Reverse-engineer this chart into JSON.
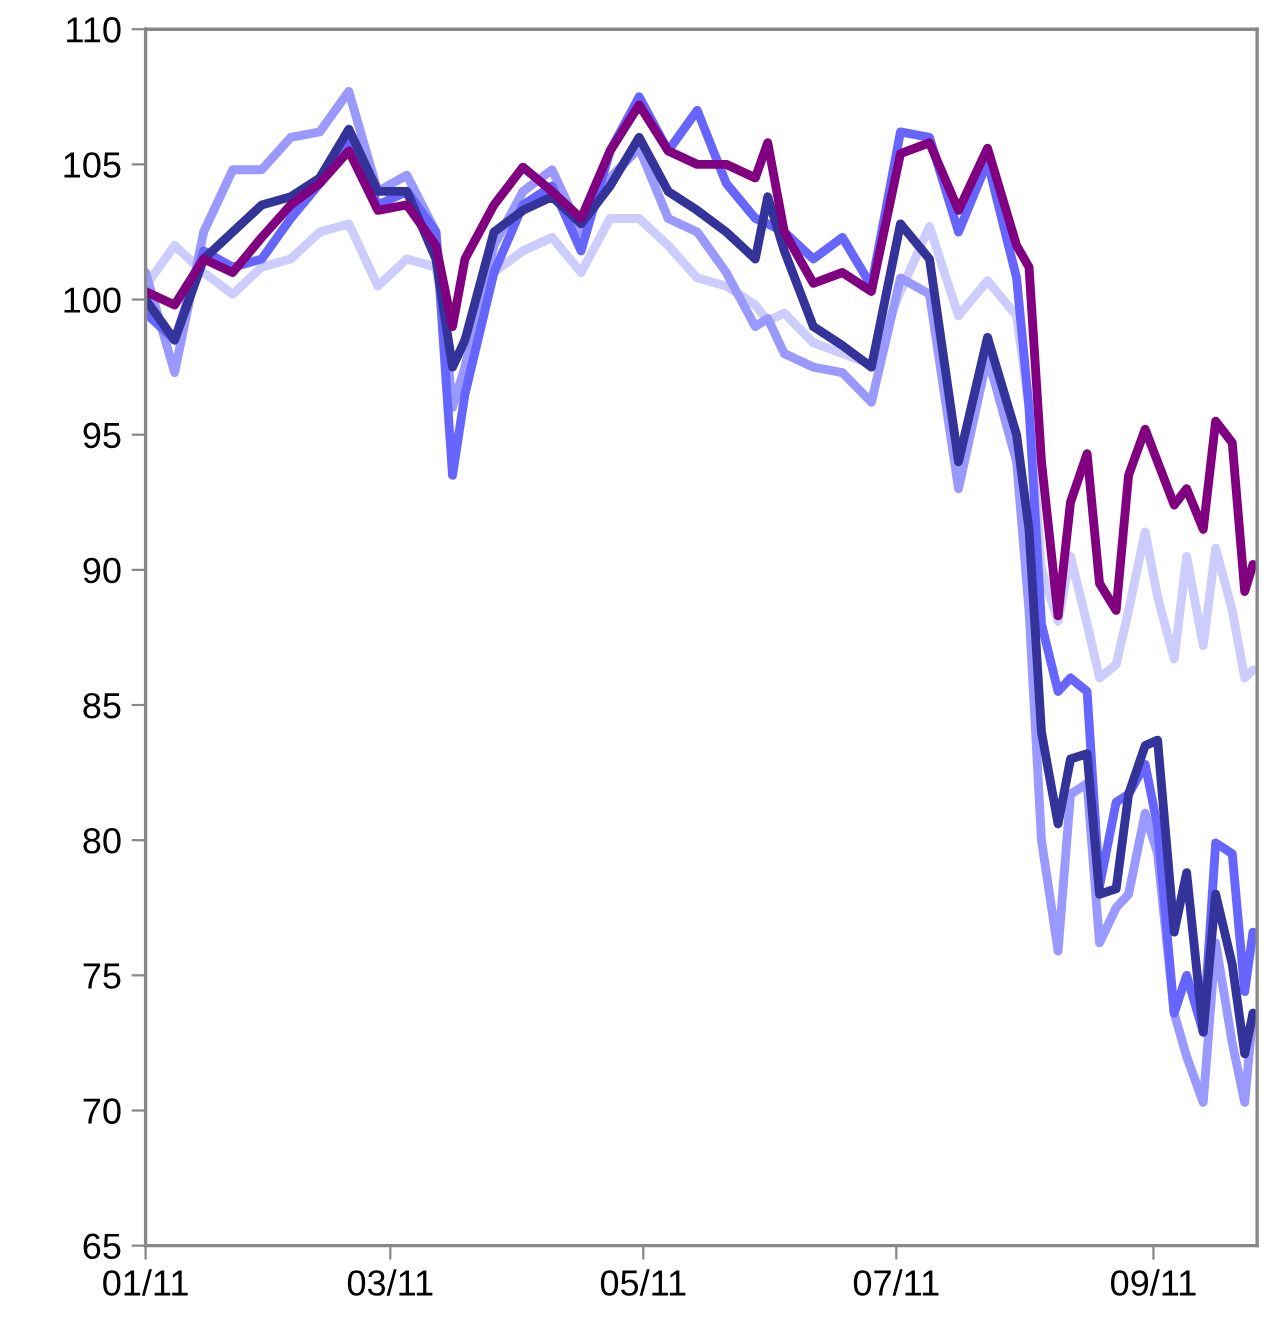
{
  "chart_data": {
    "type": "line",
    "x": [
      "2011-01-01",
      "2011-01-08",
      "2011-01-15",
      "2011-01-22",
      "2011-01-29",
      "2011-02-05",
      "2011-02-12",
      "2011-02-19",
      "2011-02-26",
      "2011-03-05",
      "2011-03-12",
      "2011-03-16",
      "2011-03-19",
      "2011-03-26",
      "2011-04-02",
      "2011-04-09",
      "2011-04-16",
      "2011-04-23",
      "2011-04-30",
      "2011-05-07",
      "2011-05-14",
      "2011-05-21",
      "2011-05-28",
      "2011-05-31",
      "2011-06-04",
      "2011-06-11",
      "2011-06-18",
      "2011-06-25",
      "2011-07-02",
      "2011-07-09",
      "2011-07-16",
      "2011-07-23",
      "2011-07-30",
      "2011-08-02",
      "2011-08-05",
      "2011-08-09",
      "2011-08-12",
      "2011-08-16",
      "2011-08-19",
      "2011-08-23",
      "2011-08-26",
      "2011-08-30",
      "2011-09-02",
      "2011-09-06",
      "2011-09-09",
      "2011-09-13",
      "2011-09-16",
      "2011-09-20",
      "2011-09-23",
      "2011-09-25"
    ],
    "series": [
      {
        "color": "#ccccff",
        "values": [
          100.5,
          102,
          101,
          100.2,
          101.2,
          101.5,
          102.5,
          102.8,
          100.5,
          101.5,
          101.2,
          97.5,
          98.5,
          101,
          101.8,
          102.3,
          101,
          103,
          103,
          102,
          100.8,
          100.5,
          99.8,
          99.2,
          99.5,
          98.4,
          98,
          97.6,
          100.3,
          102.7,
          99.4,
          100.7,
          99.4,
          96,
          90,
          88.1,
          90.5,
          88,
          86,
          86.5,
          88.5,
          91.4,
          89,
          86.7,
          90.5,
          87.2,
          90.8,
          88.5,
          86,
          86.3
        ]
      },
      {
        "color": "#9999ff",
        "values": [
          101,
          97.3,
          102.5,
          104.8,
          104.8,
          106,
          106.2,
          107.7,
          104,
          104.6,
          102.5,
          96,
          97.5,
          102,
          104,
          104.8,
          102.5,
          104.5,
          105.6,
          103,
          102.5,
          101,
          99,
          99.3,
          98,
          97.5,
          97.3,
          96.2,
          100.8,
          100.2,
          93,
          97.9,
          94,
          88.5,
          80,
          75.9,
          81.7,
          82.1,
          76.2,
          77.5,
          78,
          81,
          79.5,
          73.6,
          72,
          70.3,
          76.2,
          72.5,
          70.3,
          73.6
        ]
      },
      {
        "color": "#6666ff",
        "values": [
          99.5,
          98.5,
          101.8,
          101.2,
          101.5,
          103,
          104.3,
          105.8,
          103.5,
          104,
          102.5,
          93.5,
          96.5,
          101,
          103.5,
          104.2,
          101.8,
          105.5,
          107.5,
          105.5,
          107,
          104.3,
          103,
          102.8,
          102.5,
          101.5,
          102.3,
          100.5,
          106.2,
          106,
          102.5,
          105.1,
          100.8,
          96,
          88,
          85.5,
          86,
          85.5,
          78.3,
          81.4,
          81.7,
          82.8,
          80.5,
          73.6,
          75,
          72.9,
          79.9,
          79.5,
          74.4,
          76.6
        ]
      },
      {
        "color": "#333399",
        "values": [
          100,
          98.5,
          101.5,
          102.5,
          103.5,
          103.8,
          104.5,
          106.3,
          104,
          104,
          101.5,
          97.5,
          98.5,
          102.5,
          103.3,
          103.8,
          102.8,
          104.2,
          106,
          104,
          103.3,
          102.5,
          101.5,
          103.8,
          101.8,
          99,
          98.3,
          97.5,
          102.8,
          101.5,
          94,
          98.6,
          95,
          91.5,
          84,
          80.6,
          83,
          83.2,
          78,
          78.2,
          81.7,
          83.5,
          83.7,
          76.6,
          78.8,
          72.9,
          78,
          75.4,
          72.1,
          73.6
        ]
      },
      {
        "color": "#800080",
        "values": [
          100.3,
          99.8,
          101.5,
          101,
          102.3,
          103.5,
          104.3,
          105.5,
          103.3,
          103.5,
          102,
          99,
          101.5,
          103.5,
          104.9,
          104,
          103,
          105.5,
          107.2,
          105.5,
          105,
          105,
          104.5,
          105.8,
          102.5,
          100.6,
          101,
          100.3,
          105.4,
          105.8,
          103.3,
          105.6,
          102,
          101.2,
          94,
          88.3,
          92.5,
          94.3,
          89.5,
          88.5,
          93.5,
          95.2,
          94,
          92.4,
          93,
          91.5,
          95.5,
          94.7,
          89.2,
          90.2
        ]
      }
    ],
    "xlim": [
      "2011-01-01",
      "2011-09-26"
    ],
    "xticks": [
      {
        "value": "2011-01-01",
        "label": "01/11"
      },
      {
        "value": "2011-03-01",
        "label": "03/11"
      },
      {
        "value": "2011-05-01",
        "label": "05/11"
      },
      {
        "value": "2011-07-01",
        "label": "07/11"
      },
      {
        "value": "2011-09-01",
        "label": "09/11"
      }
    ],
    "ylim": [
      65,
      110
    ],
    "yticks": [
      65,
      70,
      75,
      80,
      85,
      90,
      95,
      100,
      105,
      110
    ],
    "grid": false,
    "marker": "none",
    "line_style": "solid"
  }
}
